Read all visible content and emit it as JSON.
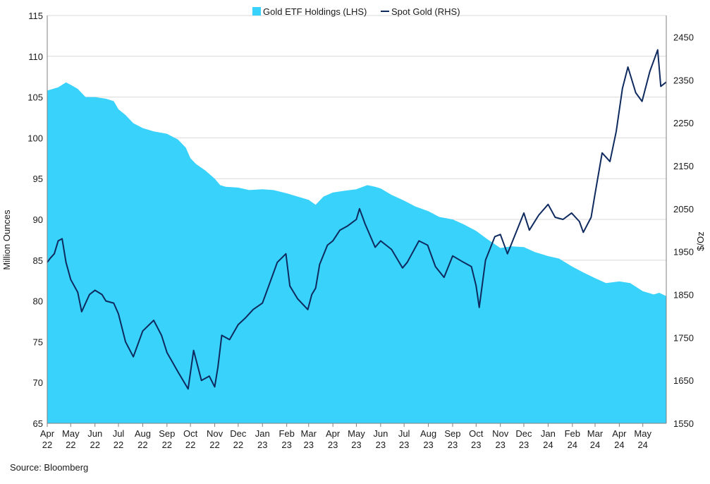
{
  "source": "Source: Bloomberg",
  "colors": {
    "etf_fill": "#38D2FA",
    "spot_line": "#0E2A5E",
    "grid": "#D9D9D9",
    "axis": "#808080"
  },
  "chart_data": {
    "type": "area",
    "title": "",
    "legend_position": "top-center",
    "grid": true,
    "x_ticks": [
      {
        "month": "Apr",
        "year": "22"
      },
      {
        "month": "May",
        "year": "22"
      },
      {
        "month": "Jun",
        "year": "22"
      },
      {
        "month": "Jul",
        "year": "22"
      },
      {
        "month": "Aug",
        "year": "22"
      },
      {
        "month": "Sep",
        "year": "22"
      },
      {
        "month": "Oct",
        "year": "22"
      },
      {
        "month": "Nov",
        "year": "22"
      },
      {
        "month": "Dec",
        "year": "22"
      },
      {
        "month": "Jan",
        "year": "23"
      },
      {
        "month": "Feb",
        "year": "23"
      },
      {
        "month": "Mar",
        "year": "23"
      },
      {
        "month": "Apr",
        "year": "23"
      },
      {
        "month": "May",
        "year": "23"
      },
      {
        "month": "Jun",
        "year": "23"
      },
      {
        "month": "Jul",
        "year": "23"
      },
      {
        "month": "Aug",
        "year": "23"
      },
      {
        "month": "Sep",
        "year": "23"
      },
      {
        "month": "Oct",
        "year": "23"
      },
      {
        "month": "Nov",
        "year": "23"
      },
      {
        "month": "Dec",
        "year": "23"
      },
      {
        "month": "Jan",
        "year": "24"
      },
      {
        "month": "Feb",
        "year": "24"
      },
      {
        "month": "Mar",
        "year": "24"
      },
      {
        "month": "Apr",
        "year": "24"
      },
      {
        "month": "May",
        "year": "24"
      }
    ],
    "x_range": [
      "2022-04-01",
      "2024-05-31"
    ],
    "y_left": {
      "label": "Million Ounces",
      "range": [
        65,
        115
      ],
      "ticks": [
        65,
        70,
        75,
        80,
        85,
        90,
        95,
        100,
        105,
        110,
        115
      ]
    },
    "y_right": {
      "label": "$/Oz",
      "range": [
        1550,
        2500
      ],
      "ticks": [
        1550,
        1650,
        1750,
        1850,
        1950,
        2050,
        2150,
        2250,
        2350,
        2450
      ]
    },
    "series": [
      {
        "name": "Gold ETF Holdings (LHS)",
        "type": "area",
        "axis": "left",
        "points": [
          [
            "2022-04-01",
            105.8
          ],
          [
            "2022-04-15",
            106.2
          ],
          [
            "2022-04-25",
            106.8
          ],
          [
            "2022-05-01",
            106.5
          ],
          [
            "2022-05-10",
            106.0
          ],
          [
            "2022-05-20",
            105.0
          ],
          [
            "2022-06-01",
            105.0
          ],
          [
            "2022-06-15",
            104.8
          ],
          [
            "2022-06-25",
            104.5
          ],
          [
            "2022-07-01",
            103.5
          ],
          [
            "2022-07-10",
            102.8
          ],
          [
            "2022-07-20",
            101.8
          ],
          [
            "2022-08-01",
            101.2
          ],
          [
            "2022-08-15",
            100.8
          ],
          [
            "2022-09-01",
            100.5
          ],
          [
            "2022-09-15",
            99.8
          ],
          [
            "2022-09-25",
            98.8
          ],
          [
            "2022-10-01",
            97.5
          ],
          [
            "2022-10-08",
            96.8
          ],
          [
            "2022-10-20",
            96.0
          ],
          [
            "2022-11-01",
            95.0
          ],
          [
            "2022-11-08",
            94.2
          ],
          [
            "2022-11-15",
            94.0
          ],
          [
            "2022-12-01",
            93.9
          ],
          [
            "2022-12-15",
            93.6
          ],
          [
            "2023-01-01",
            93.7
          ],
          [
            "2023-01-15",
            93.6
          ],
          [
            "2023-02-01",
            93.2
          ],
          [
            "2023-02-15",
            92.8
          ],
          [
            "2023-03-01",
            92.4
          ],
          [
            "2023-03-10",
            91.8
          ],
          [
            "2023-03-20",
            92.8
          ],
          [
            "2023-04-01",
            93.3
          ],
          [
            "2023-04-15",
            93.5
          ],
          [
            "2023-05-01",
            93.7
          ],
          [
            "2023-05-15",
            94.2
          ],
          [
            "2023-05-25",
            94.0
          ],
          [
            "2023-06-01",
            93.8
          ],
          [
            "2023-06-15",
            93.0
          ],
          [
            "2023-07-01",
            92.3
          ],
          [
            "2023-07-15",
            91.6
          ],
          [
            "2023-08-01",
            91.0
          ],
          [
            "2023-08-15",
            90.3
          ],
          [
            "2023-09-01",
            90.0
          ],
          [
            "2023-09-15",
            89.4
          ],
          [
            "2023-10-01",
            88.6
          ],
          [
            "2023-10-15",
            87.6
          ],
          [
            "2023-11-01",
            86.5
          ],
          [
            "2023-11-15",
            86.7
          ],
          [
            "2023-12-01",
            86.6
          ],
          [
            "2023-12-15",
            86.0
          ],
          [
            "2024-01-01",
            85.5
          ],
          [
            "2024-01-15",
            85.2
          ],
          [
            "2024-02-01",
            84.2
          ],
          [
            "2024-02-15",
            83.5
          ],
          [
            "2024-03-01",
            82.8
          ],
          [
            "2024-03-15",
            82.2
          ],
          [
            "2024-04-01",
            82.4
          ],
          [
            "2024-04-15",
            82.2
          ],
          [
            "2024-05-01",
            81.2
          ],
          [
            "2024-05-15",
            80.8
          ],
          [
            "2024-05-22",
            81.0
          ],
          [
            "2024-05-31",
            80.6
          ]
        ]
      },
      {
        "name": "Spot Gold (RHS)",
        "type": "line",
        "axis": "right",
        "points": [
          [
            "2022-04-01",
            1925
          ],
          [
            "2022-04-05",
            1935
          ],
          [
            "2022-04-10",
            1945
          ],
          [
            "2022-04-15",
            1975
          ],
          [
            "2022-04-20",
            1980
          ],
          [
            "2022-04-25",
            1925
          ],
          [
            "2022-05-01",
            1885
          ],
          [
            "2022-05-10",
            1855
          ],
          [
            "2022-05-15",
            1810
          ],
          [
            "2022-05-25",
            1850
          ],
          [
            "2022-06-01",
            1860
          ],
          [
            "2022-06-10",
            1850
          ],
          [
            "2022-06-15",
            1835
          ],
          [
            "2022-06-25",
            1830
          ],
          [
            "2022-07-01",
            1805
          ],
          [
            "2022-07-10",
            1740
          ],
          [
            "2022-07-20",
            1705
          ],
          [
            "2022-08-01",
            1765
          ],
          [
            "2022-08-15",
            1790
          ],
          [
            "2022-08-25",
            1755
          ],
          [
            "2022-09-01",
            1715
          ],
          [
            "2022-09-15",
            1670
          ],
          [
            "2022-09-28",
            1630
          ],
          [
            "2022-10-05",
            1720
          ],
          [
            "2022-10-15",
            1650
          ],
          [
            "2022-10-25",
            1660
          ],
          [
            "2022-11-01",
            1635
          ],
          [
            "2022-11-05",
            1680
          ],
          [
            "2022-11-10",
            1755
          ],
          [
            "2022-11-20",
            1745
          ],
          [
            "2022-12-01",
            1780
          ],
          [
            "2022-12-10",
            1795
          ],
          [
            "2022-12-20",
            1815
          ],
          [
            "2023-01-01",
            1830
          ],
          [
            "2023-01-10",
            1875
          ],
          [
            "2023-01-20",
            1925
          ],
          [
            "2023-01-31",
            1945
          ],
          [
            "2023-02-05",
            1870
          ],
          [
            "2023-02-15",
            1840
          ],
          [
            "2023-02-28",
            1815
          ],
          [
            "2023-03-05",
            1850
          ],
          [
            "2023-03-10",
            1865
          ],
          [
            "2023-03-15",
            1920
          ],
          [
            "2023-03-25",
            1965
          ],
          [
            "2023-04-01",
            1975
          ],
          [
            "2023-04-10",
            2000
          ],
          [
            "2023-04-20",
            2010
          ],
          [
            "2023-05-01",
            2025
          ],
          [
            "2023-05-05",
            2050
          ],
          [
            "2023-05-12",
            2015
          ],
          [
            "2023-05-25",
            1960
          ],
          [
            "2023-06-01",
            1975
          ],
          [
            "2023-06-15",
            1955
          ],
          [
            "2023-06-29",
            1912
          ],
          [
            "2023-07-05",
            1925
          ],
          [
            "2023-07-20",
            1975
          ],
          [
            "2023-07-31",
            1965
          ],
          [
            "2023-08-10",
            1915
          ],
          [
            "2023-08-21",
            1890
          ],
          [
            "2023-09-01",
            1940
          ],
          [
            "2023-09-15",
            1925
          ],
          [
            "2023-09-25",
            1915
          ],
          [
            "2023-10-01",
            1870
          ],
          [
            "2023-10-05",
            1820
          ],
          [
            "2023-10-13",
            1930
          ],
          [
            "2023-10-25",
            1985
          ],
          [
            "2023-11-01",
            1990
          ],
          [
            "2023-11-10",
            1945
          ],
          [
            "2023-11-20",
            1990
          ],
          [
            "2023-12-01",
            2040
          ],
          [
            "2023-12-08",
            2000
          ],
          [
            "2023-12-20",
            2035
          ],
          [
            "2024-01-01",
            2060
          ],
          [
            "2024-01-10",
            2030
          ],
          [
            "2024-01-20",
            2025
          ],
          [
            "2024-01-31",
            2040
          ],
          [
            "2024-02-10",
            2020
          ],
          [
            "2024-02-15",
            1995
          ],
          [
            "2024-02-25",
            2030
          ],
          [
            "2024-03-01",
            2085
          ],
          [
            "2024-03-10",
            2180
          ],
          [
            "2024-03-20",
            2160
          ],
          [
            "2024-03-28",
            2230
          ],
          [
            "2024-04-05",
            2330
          ],
          [
            "2024-04-12",
            2380
          ],
          [
            "2024-04-22",
            2320
          ],
          [
            "2024-04-30",
            2300
          ],
          [
            "2024-05-10",
            2370
          ],
          [
            "2024-05-20",
            2420
          ],
          [
            "2024-05-24",
            2335
          ],
          [
            "2024-05-31",
            2345
          ]
        ]
      }
    ]
  }
}
